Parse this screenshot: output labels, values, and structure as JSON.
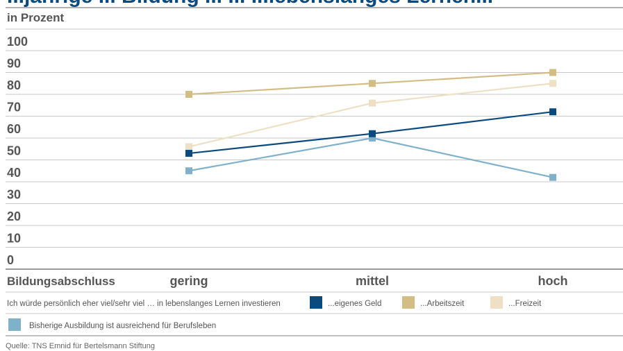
{
  "chart_data": {
    "type": "line",
    "title": "",
    "title_fragment": "...jährige ... Bildung ... ... ...lebenslanges Lernen...",
    "unit_label": "in Prozent",
    "xlabel": "Bildungsabschluss",
    "ylabel": "",
    "ylim": [
      0,
      100
    ],
    "yticks": [
      0,
      10,
      20,
      30,
      40,
      50,
      60,
      70,
      80,
      90,
      100
    ],
    "grid": true,
    "categories": [
      "gering",
      "mittel",
      "hoch"
    ],
    "series": [
      {
        "name": "...eigenes Geld",
        "color": "#0b4a7e",
        "values": [
          53,
          62,
          72
        ]
      },
      {
        "name": "...Arbeitszeit",
        "color": "#d4bc85",
        "values": [
          80,
          85,
          90
        ]
      },
      {
        "name": "...Freizeit",
        "color": "#ede0c4",
        "values": [
          56,
          76,
          85
        ]
      },
      {
        "name": "Bisherige Ausbildung ist ausreichend für Berufsleben",
        "color": "#7fb1ca",
        "values": [
          45,
          60,
          42
        ]
      }
    ],
    "legend_intro": "Ich würde persönlich eher viel/sehr viel … in lebenslanges Lernen investieren",
    "source": "Quelle: TNS Emnid für Bertelsmann Stiftung"
  },
  "colors": {
    "title": "#0b4a7e",
    "text": "#555555",
    "grid": "#c8c8c8",
    "axis": "#999999"
  }
}
